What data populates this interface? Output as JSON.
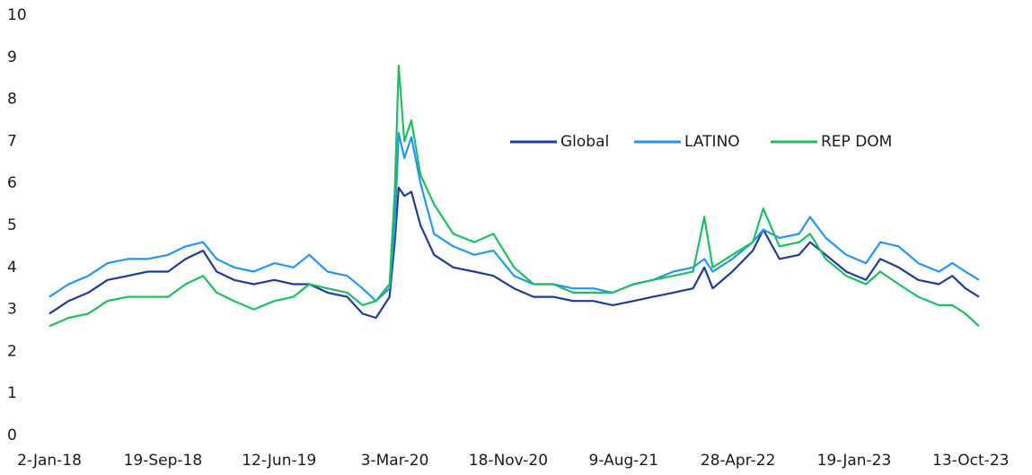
{
  "chart_data": {
    "type": "line",
    "x": [
      "2018-01-02",
      "2018-02-15",
      "2018-04-01",
      "2018-05-15",
      "2018-07-01",
      "2018-08-15",
      "2018-10-01",
      "2018-11-10",
      "2018-12-20",
      "2019-01-20",
      "2019-03-01",
      "2019-04-15",
      "2019-06-01",
      "2019-07-15",
      "2019-08-20",
      "2019-10-01",
      "2019-11-15",
      "2019-12-20",
      "2020-01-20",
      "2020-02-20",
      "2020-03-03",
      "2020-03-12",
      "2020-03-25",
      "2020-04-10",
      "2020-05-01",
      "2020-06-01",
      "2020-07-15",
      "2020-09-01",
      "2020-10-15",
      "2020-12-01",
      "2021-01-15",
      "2021-03-01",
      "2021-04-15",
      "2021-06-01",
      "2021-07-15",
      "2021-09-01",
      "2021-10-15",
      "2021-12-01",
      "2022-01-15",
      "2022-02-10",
      "2022-03-01",
      "2022-04-15",
      "2022-06-01",
      "2022-06-25",
      "2022-08-01",
      "2022-09-15",
      "2022-10-10",
      "2022-11-15",
      "2023-01-01",
      "2023-02-15",
      "2023-03-20",
      "2023-05-01",
      "2023-06-15",
      "2023-08-01",
      "2023-09-01",
      "2023-10-01",
      "2023-11-01"
    ],
    "series": [
      {
        "name": "Global",
        "color": "#1f3c99",
        "values": [
          2.9,
          3.2,
          3.4,
          3.7,
          3.8,
          3.9,
          3.9,
          4.2,
          4.4,
          3.9,
          3.7,
          3.6,
          3.7,
          3.6,
          3.6,
          3.4,
          3.3,
          2.9,
          2.8,
          3.3,
          4.6,
          5.9,
          5.7,
          5.8,
          5.0,
          4.3,
          4.0,
          3.9,
          3.8,
          3.5,
          3.3,
          3.3,
          3.2,
          3.2,
          3.1,
          3.2,
          3.3,
          3.4,
          3.5,
          4.0,
          3.5,
          3.9,
          4.4,
          4.9,
          4.2,
          4.3,
          4.6,
          4.3,
          3.9,
          3.7,
          4.2,
          4.0,
          3.7,
          3.6,
          3.8,
          3.5,
          3.3
        ]
      },
      {
        "name": "LATINO",
        "color": "#2196f3",
        "values": [
          3.3,
          3.6,
          3.8,
          4.1,
          4.2,
          4.2,
          4.3,
          4.5,
          4.6,
          4.2,
          4.0,
          3.9,
          4.1,
          4.0,
          4.3,
          3.9,
          3.8,
          3.5,
          3.2,
          3.5,
          5.0,
          7.2,
          6.6,
          7.1,
          6.0,
          4.8,
          4.5,
          4.3,
          4.4,
          3.8,
          3.6,
          3.6,
          3.5,
          3.5,
          3.4,
          3.6,
          3.7,
          3.9,
          4.0,
          4.2,
          3.9,
          4.2,
          4.6,
          4.9,
          4.7,
          4.8,
          5.2,
          4.7,
          4.3,
          4.1,
          4.6,
          4.5,
          4.1,
          3.9,
          4.1,
          3.9,
          3.7
        ]
      },
      {
        "name": "REP DOM",
        "color": "#1dbf5f",
        "values": [
          2.6,
          2.8,
          2.9,
          3.2,
          3.3,
          3.3,
          3.3,
          3.6,
          3.8,
          3.4,
          3.2,
          3.0,
          3.2,
          3.3,
          3.6,
          3.5,
          3.4,
          3.1,
          3.2,
          3.6,
          5.8,
          8.8,
          7.0,
          7.5,
          6.2,
          5.5,
          4.8,
          4.6,
          4.8,
          4.0,
          3.6,
          3.6,
          3.4,
          3.4,
          3.4,
          3.6,
          3.7,
          3.8,
          3.9,
          5.2,
          4.0,
          4.3,
          4.6,
          5.4,
          4.5,
          4.6,
          4.8,
          4.2,
          3.8,
          3.6,
          3.9,
          3.6,
          3.3,
          3.1,
          3.1,
          2.9,
          2.6
        ]
      }
    ],
    "xlim": [
      "2018-01-02",
      "2023-11-01"
    ],
    "xticks": [
      {
        "value": "2018-01-02",
        "label": "2-Jan-18"
      },
      {
        "value": "2018-09-19",
        "label": "19-Sep-18"
      },
      {
        "value": "2019-06-12",
        "label": "12-Jun-19"
      },
      {
        "value": "2020-03-03",
        "label": "3-Mar-20"
      },
      {
        "value": "2020-11-18",
        "label": "18-Nov-20"
      },
      {
        "value": "2021-08-09",
        "label": "9-Aug-21"
      },
      {
        "value": "2022-04-28",
        "label": "28-Apr-22"
      },
      {
        "value": "2023-01-19",
        "label": "19-Jan-23"
      },
      {
        "value": "2023-10-13",
        "label": "13-Oct-23"
      }
    ],
    "ylim": [
      0,
      10
    ],
    "yticks": [
      0,
      1,
      2,
      3,
      4,
      5,
      6,
      7,
      8,
      9,
      10
    ],
    "grid": false,
    "legend": "top"
  }
}
